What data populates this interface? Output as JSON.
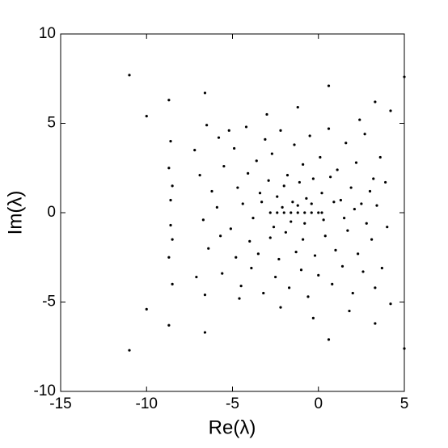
{
  "chart_data": {
    "type": "scatter",
    "xlabel": "Re(λ)",
    "ylabel": "Im(λ)",
    "color": "#000000",
    "xlim": [
      -15,
      5
    ],
    "ylim": [
      -10,
      10
    ],
    "xticks": [
      -15,
      -10,
      -5,
      0,
      5
    ],
    "yticks": [
      -10,
      -5,
      0,
      5,
      10
    ],
    "x": [
      -11,
      -11,
      5,
      5,
      0.6,
      0.6,
      -6.6,
      -6.6,
      -10,
      -10,
      -8.7,
      -8.7,
      3.3,
      3.3,
      4.2,
      4.2,
      -8.6,
      -8.5,
      -8.7,
      -8.7,
      -8.6,
      -8.6,
      -8.5,
      -8.5,
      -6.5,
      -5.8,
      -4.9,
      -4.2,
      -3.6,
      -3.1,
      -2.7,
      -2.2,
      -1.8,
      -1.4,
      -0.9,
      -0.5,
      0.1,
      0.6,
      1.1,
      1.6,
      2.2,
      2.7,
      3.2,
      -6.9,
      -6.2,
      -5.5,
      -4.7,
      -4.1,
      -3.4,
      -2.9,
      -2.4,
      -2.0,
      -1.5,
      -1.1,
      -0.7,
      -0.3,
      0.2,
      0.7,
      1.3,
      1.9,
      2.5,
      3.0,
      -6.7,
      -5.9,
      -5.1,
      -4.4,
      -3.8,
      -3.3,
      -2.6,
      -2.1,
      -1.6,
      -1.2,
      -0.8,
      -0.4,
      0.3,
      0.9,
      1.5,
      2.1,
      2.8,
      3.4,
      -6.4,
      -5.7,
      -4.8,
      -4.0,
      -3.5,
      -2.8,
      -2.3,
      -1.9,
      -1.3,
      -0.9,
      -0.2,
      0.4,
      1.0,
      1.7,
      2.3,
      3.1,
      -6.6,
      -5.6,
      -4.5,
      -3.9,
      -3.2,
      -2.5,
      -1.7,
      -1.0,
      -0.6,
      0.0,
      0.8,
      1.4,
      2.0,
      2.6,
      3.3,
      -5.2,
      -4.6,
      3.6,
      3.7,
      -7.2,
      -7.1,
      4.0,
      3.9,
      -3.0,
      1.8,
      -1.2,
      -0.3,
      2.4,
      -2.2,
      -2.8,
      -2.4,
      -2.0,
      -1.6,
      -1.2,
      -0.8,
      -0.4,
      0,
      0.2
    ],
    "values": [
      7.7,
      -7.7,
      7.6,
      -7.6,
      7.1,
      -7.1,
      6.7,
      -6.7,
      5.4,
      -5.4,
      6.3,
      -6.3,
      6.2,
      -6.2,
      5.7,
      -5.1,
      4,
      -4,
      2.5,
      -2.5,
      0.7,
      -0.7,
      1.5,
      -1.5,
      4.9,
      4.2,
      3.6,
      4.8,
      2.9,
      4.1,
      3.3,
      4.6,
      2.1,
      3.8,
      2.7,
      4.3,
      3.1,
      4.7,
      2.4,
      3.9,
      2.8,
      4.4,
      1.9,
      2.1,
      1.2,
      2.6,
      1.4,
      2.2,
      1.1,
      1.8,
      0.9,
      1.5,
      0.6,
      1.7,
      0.8,
      1.9,
      1.1,
      2.0,
      0.7,
      1.4,
      0.5,
      1.2,
      -0.4,
      0.3,
      -0.9,
      0.5,
      -0.3,
      0.6,
      -0.8,
      0.3,
      -0.5,
      0.4,
      -0.6,
      0.5,
      -0.4,
      0.6,
      -0.3,
      0.2,
      -0.6,
      0.4,
      -2.0,
      -1.3,
      -2.5,
      -1.6,
      -2.3,
      -1.4,
      -2.6,
      -1.1,
      -2.2,
      -1.5,
      -2.4,
      -1.3,
      -2.1,
      -1.0,
      -2.3,
      -1.5,
      -4.6,
      -3.4,
      -4.1,
      -3.1,
      -4.5,
      -3.6,
      -4.2,
      -3.2,
      -4.7,
      -3.5,
      -4.0,
      -3.0,
      -4.5,
      -3.3,
      -4.2,
      4.6,
      -4.8,
      3.1,
      -3.1,
      3.5,
      -3.6,
      -0.8,
      1.7,
      5.5,
      -5.5,
      5.9,
      -5.9,
      5.2,
      -5.3,
      0,
      0,
      0,
      0,
      0,
      0,
      0,
      0,
      0
    ]
  }
}
